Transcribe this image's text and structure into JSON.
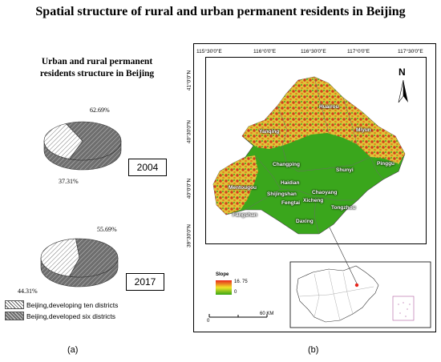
{
  "title": "Spatial structure of rural and urban permanent residents in Beijing",
  "panel_a": {
    "title_line1": "Urban and rural permanent",
    "title_line2": "residents structure in  Beijing",
    "caption": "(a)",
    "charts": [
      {
        "year": "2004",
        "values": [
          62.69,
          37.31
        ],
        "label_top": "62.69%",
        "label_bottom": "37.31%"
      },
      {
        "year": "2017",
        "values": [
          55.69,
          44.31
        ],
        "label_top": "55.69%",
        "label_bottom": "44.31%"
      }
    ],
    "legend": [
      {
        "label": "Beijing,developing ten districts",
        "color": "#ffffff"
      },
      {
        "label": "Beijing,developed six districts",
        "color": "#6e6e6e"
      }
    ]
  },
  "chart_data": [
    {
      "type": "pie",
      "title": "",
      "categories": [
        "Beijing,developed six districts",
        "Beijing,developing ten districts"
      ],
      "values": [
        62.69,
        37.31
      ],
      "year": "2004",
      "legend": "bottom-left"
    },
    {
      "type": "pie",
      "title": "",
      "categories": [
        "Beijing,developed six districts",
        "Beijing,developing ten districts"
      ],
      "values": [
        55.69,
        44.31
      ],
      "year": "2017",
      "legend": "bottom-left"
    }
  ],
  "panel_b": {
    "caption": "(b)",
    "top_ticks": [
      "115°30'0\"E",
      "116°0'0\"E",
      "116°30'0\"E",
      "117°0'0\"E",
      "117°30'0\"E"
    ],
    "left_ticks": [
      "41°0'0\"N",
      "40°30'0\"N",
      "40°0'0\"N",
      "39°30'0\"N"
    ],
    "north": "N",
    "districts": [
      "Huairou",
      "Yanqing",
      "Miyun",
      "Pinggu",
      "Changping",
      "Shunyi",
      "Mentougou",
      "Haidian",
      "Shijingshan",
      "Chaoyang",
      "Fengtai",
      "Xicheng",
      "Tongzhou",
      "Fangshan",
      "Daxing"
    ],
    "slope_legend": {
      "title": "Slope",
      "max": "16. 75",
      "min": "0",
      "colors": [
        "#e8251b",
        "#f0e428",
        "#35a615"
      ]
    },
    "scale": {
      "start": "0",
      "end": "60 KM"
    }
  }
}
